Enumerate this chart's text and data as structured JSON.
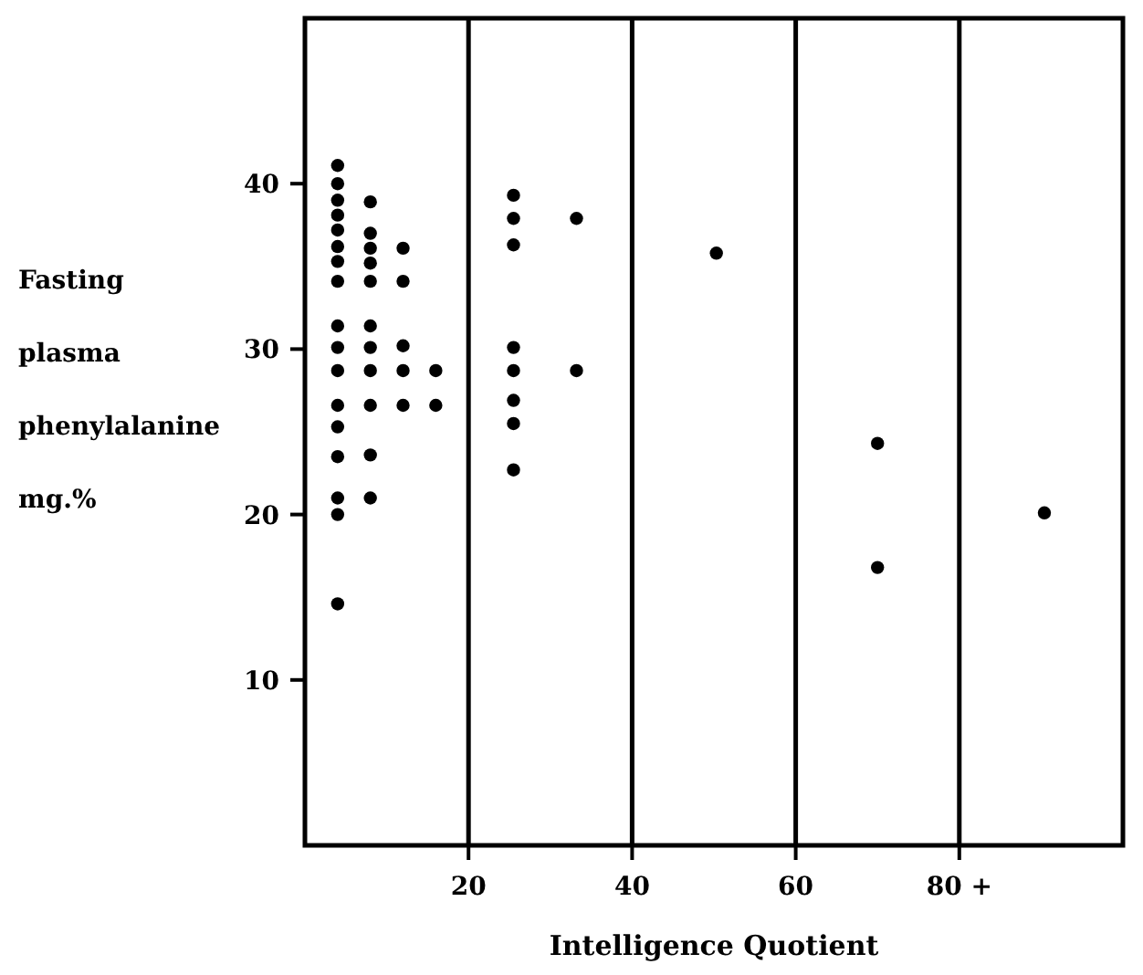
{
  "chart_data": {
    "type": "scatter",
    "xlabel": "Intelligence Quotient",
    "ylabel": "Fasting\nplasma\nphenylalanine\nmg.%",
    "xlim": [
      0,
      100
    ],
    "ylim": [
      0,
      50
    ],
    "xticks": [
      20,
      40,
      60,
      {
        "value": 80,
        "label": "80 +"
      }
    ],
    "yticks": [
      10,
      20,
      30,
      40
    ],
    "grid": "x",
    "marker": "circle",
    "series": [
      {
        "color": "#000000",
        "x": [
          4,
          4,
          4,
          4,
          4,
          4,
          4,
          4,
          4,
          4,
          4,
          4,
          4,
          4,
          4,
          4,
          4,
          8,
          8,
          8,
          8,
          8,
          8,
          8,
          8,
          8,
          8,
          8,
          12,
          12,
          12,
          12,
          12,
          16,
          16,
          25.5,
          25.5,
          25.5,
          25.5,
          25.5,
          25.5,
          25.5,
          25.5,
          33.2,
          33.2,
          50.3,
          70,
          70,
          90.4
        ],
        "values": [
          41.1,
          40,
          39,
          38.1,
          37.2,
          36.2,
          35.3,
          34.1,
          31.4,
          30.1,
          28.7,
          26.6,
          25.3,
          23.5,
          21,
          20,
          14.6,
          38.9,
          37,
          36.1,
          35.2,
          34.1,
          31.4,
          30.1,
          28.7,
          26.6,
          23.6,
          21,
          36.1,
          34.1,
          30.2,
          28.7,
          26.6,
          28.7,
          26.6,
          39.3,
          37.9,
          36.3,
          30.1,
          28.7,
          26.9,
          25.5,
          22.7,
          37.9,
          28.7,
          35.8,
          24.3,
          16.8,
          20.1
        ]
      }
    ]
  }
}
